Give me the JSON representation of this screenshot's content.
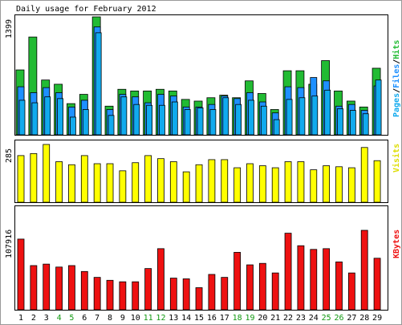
{
  "chart_data": [
    {
      "type": "bar",
      "title": "Daily usage for February 2012",
      "categories": [
        "1",
        "2",
        "3",
        "4",
        "5",
        "6",
        "7",
        "8",
        "9",
        "10",
        "11",
        "12",
        "13",
        "14",
        "15",
        "16",
        "17",
        "18",
        "19",
        "20",
        "21",
        "22",
        "23",
        "24",
        "25",
        "26",
        "27",
        "28",
        "29"
      ],
      "weekend_days": [
        "4",
        "5",
        "11",
        "12",
        "18",
        "19",
        "25",
        "26"
      ],
      "ylabel": "1399",
      "ylim": [
        0,
        1399
      ],
      "legend": [
        "Pages",
        "Files",
        "Hits"
      ],
      "colors": {
        "hits": "#22bb33",
        "files": "#1e90ff",
        "pages": "#11aaee"
      },
      "series": [
        {
          "name": "Hits",
          "values": [
            770,
            1160,
            650,
            600,
            370,
            480,
            1399,
            340,
            540,
            520,
            520,
            540,
            520,
            420,
            400,
            440,
            470,
            440,
            640,
            490,
            300,
            760,
            760,
            600,
            880,
            520,
            400,
            330,
            790
          ]
        },
        {
          "name": "Files",
          "values": [
            570,
            500,
            560,
            500,
            330,
            410,
            1280,
            300,
            480,
            450,
            380,
            480,
            460,
            330,
            330,
            360,
            460,
            430,
            500,
            390,
            260,
            570,
            560,
            680,
            640,
            340,
            360,
            290,
            580
          ]
        },
        {
          "name": "Pages",
          "values": [
            410,
            380,
            450,
            430,
            210,
            300,
            1210,
            230,
            450,
            360,
            350,
            350,
            390,
            300,
            320,
            300,
            440,
            360,
            410,
            340,
            180,
            420,
            440,
            460,
            530,
            310,
            290,
            250,
            650
          ]
        }
      ]
    },
    {
      "type": "bar",
      "ylabel": "285",
      "ylim": [
        0,
        285
      ],
      "legend": [
        "Visits"
      ],
      "colors": {
        "visits": "#ffff00"
      },
      "series": [
        {
          "name": "Visits",
          "values": [
            230,
            240,
            285,
            200,
            185,
            230,
            190,
            190,
            155,
            195,
            230,
            215,
            200,
            150,
            185,
            210,
            210,
            170,
            190,
            180,
            170,
            200,
            200,
            160,
            180,
            175,
            170,
            270,
            205
          ]
        }
      ]
    },
    {
      "type": "bar",
      "ylabel": "107916",
      "ylim": [
        0,
        107916
      ],
      "legend": [
        "KBytes"
      ],
      "colors": {
        "kbytes": "#ee1111"
      },
      "series": [
        {
          "name": "KBytes",
          "values": [
            96000,
            60000,
            62000,
            58000,
            60000,
            52000,
            44000,
            40000,
            38000,
            38000,
            56000,
            83000,
            43000,
            42000,
            30000,
            48000,
            44000,
            78000,
            61000,
            63000,
            50000,
            104000,
            87000,
            82000,
            83000,
            65000,
            50000,
            107916,
            70000
          ]
        }
      ]
    }
  ]
}
